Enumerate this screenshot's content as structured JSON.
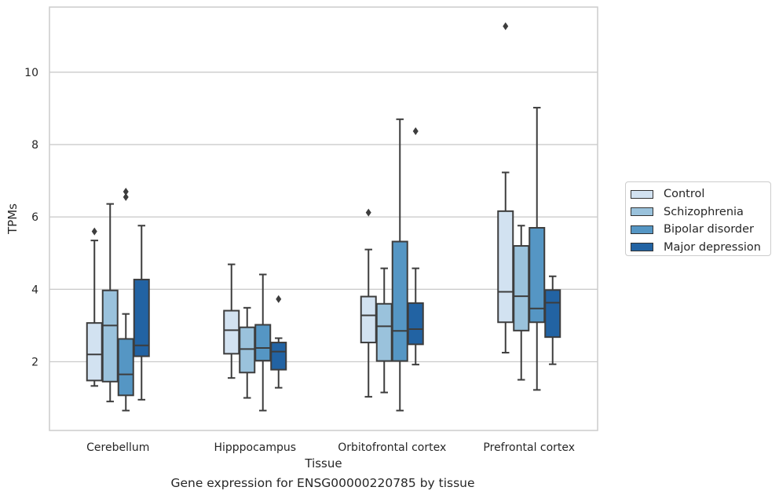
{
  "caption": "Gene expression for ENSG00000220785 by tissue",
  "chart_data": {
    "type": "box",
    "title": "",
    "xlabel": "Tissue",
    "ylabel": "TPMs",
    "categories": [
      "Cerebellum",
      "Hipppocampus",
      "Orbitofrontal cortex",
      "Prefrontal cortex"
    ],
    "ylim": [
      0.1,
      11.8
    ],
    "yticks": [
      2,
      4,
      6,
      8,
      10
    ],
    "grid": "horizontal",
    "legend_position": "right",
    "series": [
      {
        "name": "Control",
        "color": "#d2e2f1",
        "boxes": [
          {
            "min": 1.33,
            "q1": 1.48,
            "median": 2.2,
            "q3": 3.07,
            "max": 5.35,
            "outliers": [
              5.6
            ]
          },
          {
            "min": 1.55,
            "q1": 2.22,
            "median": 2.87,
            "q3": 3.41,
            "max": 4.69,
            "outliers": []
          },
          {
            "min": 1.03,
            "q1": 2.53,
            "median": 3.28,
            "q3": 3.8,
            "max": 5.1,
            "outliers": [
              6.12
            ]
          },
          {
            "min": 2.25,
            "q1": 3.09,
            "median": 3.93,
            "q3": 6.16,
            "max": 7.23,
            "outliers": [
              11.27
            ]
          }
        ]
      },
      {
        "name": "Schizophrenia",
        "color": "#9ac2dc",
        "boxes": [
          {
            "min": 0.9,
            "q1": 1.45,
            "median": 3.0,
            "q3": 3.97,
            "max": 6.36,
            "outliers": []
          },
          {
            "min": 1.0,
            "q1": 1.7,
            "median": 2.35,
            "q3": 2.95,
            "max": 3.49,
            "outliers": []
          },
          {
            "min": 1.15,
            "q1": 2.02,
            "median": 2.98,
            "q3": 3.6,
            "max": 4.58,
            "outliers": []
          },
          {
            "min": 1.5,
            "q1": 2.86,
            "median": 3.81,
            "q3": 5.2,
            "max": 5.76,
            "outliers": []
          }
        ]
      },
      {
        "name": "Bipolar disorder",
        "color": "#5596c4",
        "boxes": [
          {
            "min": 0.65,
            "q1": 1.07,
            "median": 1.65,
            "q3": 2.63,
            "max": 3.32,
            "outliers": [
              6.55,
              6.7
            ]
          },
          {
            "min": 0.65,
            "q1": 2.03,
            "median": 2.38,
            "q3": 3.02,
            "max": 4.41,
            "outliers": []
          },
          {
            "min": 0.65,
            "q1": 2.02,
            "median": 2.85,
            "q3": 5.32,
            "max": 8.7,
            "outliers": []
          },
          {
            "min": 1.22,
            "q1": 3.09,
            "median": 3.47,
            "q3": 5.7,
            "max": 9.02,
            "outliers": []
          }
        ]
      },
      {
        "name": "Major depression",
        "color": "#2263a3",
        "boxes": [
          {
            "min": 0.95,
            "q1": 2.15,
            "median": 2.45,
            "q3": 4.27,
            "max": 5.76,
            "outliers": []
          },
          {
            "min": 1.28,
            "q1": 1.78,
            "median": 2.28,
            "q3": 2.53,
            "max": 2.65,
            "outliers": [
              3.73
            ]
          },
          {
            "min": 1.92,
            "q1": 2.48,
            "median": 2.9,
            "q3": 3.62,
            "max": 4.58,
            "outliers": [
              8.37
            ]
          },
          {
            "min": 1.93,
            "q1": 2.68,
            "median": 3.63,
            "q3": 3.98,
            "max": 4.36,
            "outliers": []
          }
        ]
      }
    ]
  }
}
